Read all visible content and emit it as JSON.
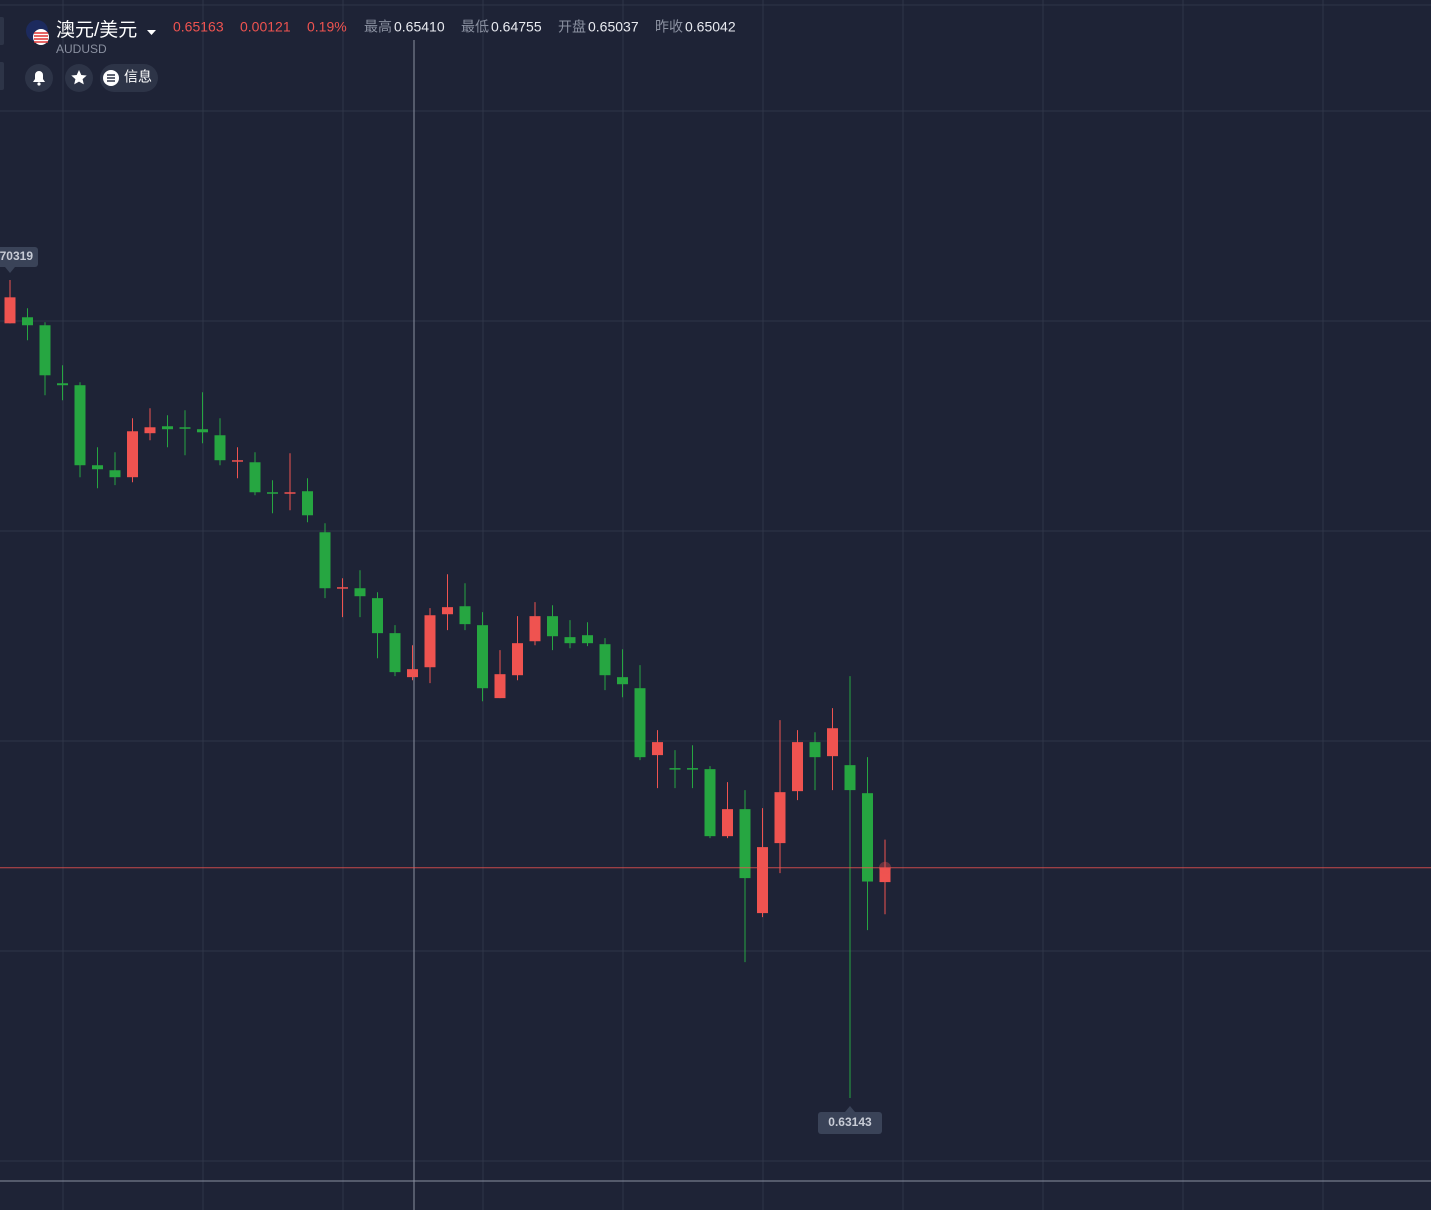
{
  "header": {
    "pair": "澳元/美元",
    "symbol": "AUDUSD",
    "price": "0.65163",
    "change": "0.00121",
    "change_pct": "0.19%",
    "stats": [
      {
        "label": "最高",
        "value": "0.65410"
      },
      {
        "label": "最低",
        "value": "0.64755"
      },
      {
        "label": "开盘",
        "value": "0.65037"
      },
      {
        "label": "昨收",
        "value": "0.65042"
      }
    ]
  },
  "buttons": {
    "info": "信息"
  },
  "chart_data": {
    "type": "candlestick",
    "open": [
      0.69939,
      0.69992,
      0.69922,
      0.69413,
      0.69396,
      0.68694,
      0.6865,
      0.68589,
      0.68975,
      0.69036,
      0.69027,
      0.6901,
      0.68957,
      0.68729,
      0.6872,
      0.68457,
      0.68448,
      0.68466,
      0.68106,
      0.67615,
      0.67615,
      0.67528,
      0.67221,
      0.66835,
      0.66922,
      0.67387,
      0.67457,
      0.67291,
      0.66651,
      0.66852,
      0.6715,
      0.6737,
      0.67186,
      0.67203,
      0.67124,
      0.66835,
      0.66738,
      0.66151,
      0.66037,
      0.66037,
      0.66028,
      0.6544,
      0.65677,
      0.64765,
      0.65379,
      0.65835,
      0.66265,
      0.66142,
      0.66063,
      0.65817,
      0.65037
    ],
    "high": [
      0.70319,
      0.70071,
      0.69948,
      0.69571,
      0.69422,
      0.68852,
      0.68808,
      0.69106,
      0.69194,
      0.69132,
      0.69176,
      0.69334,
      0.69106,
      0.68852,
      0.68808,
      0.68562,
      0.68799,
      0.6858,
      0.68185,
      0.67703,
      0.67773,
      0.6758,
      0.67291,
      0.67115,
      0.6744,
      0.67738,
      0.67659,
      0.67405,
      0.67072,
      0.6737,
      0.67493,
      0.67466,
      0.67335,
      0.67317,
      0.67177,
      0.6708,
      0.6694,
      0.6637,
      0.66195,
      0.66238,
      0.66054,
      0.65914,
      0.65844,
      0.65686,
      0.66458,
      0.6637,
      0.66352,
      0.66563,
      0.66844,
      0.66133,
      0.6541
    ],
    "low": [
      0.69939,
      0.6979,
      0.69308,
      0.69264,
      0.68589,
      0.68492,
      0.68519,
      0.68545,
      0.68913,
      0.68852,
      0.68782,
      0.68887,
      0.68694,
      0.6858,
      0.68431,
      0.68273,
      0.68299,
      0.68194,
      0.67528,
      0.67361,
      0.67361,
      0.67001,
      0.66844,
      0.66808,
      0.66782,
      0.67247,
      0.67247,
      0.66624,
      0.66651,
      0.66808,
      0.67115,
      0.67072,
      0.67089,
      0.67107,
      0.66721,
      0.66659,
      0.66107,
      0.65861,
      0.65861,
      0.65861,
      0.65423,
      0.65423,
      0.64335,
      0.6473,
      0.65116,
      0.65756,
      0.65844,
      0.65844,
      0.63143,
      0.64616,
      0.64755
    ],
    "close": [
      0.70167,
      0.69922,
      0.69483,
      0.69396,
      0.68694,
      0.68659,
      0.68589,
      0.68992,
      0.69027,
      0.6901,
      0.69018,
      0.68983,
      0.68738,
      0.68738,
      0.68457,
      0.68448,
      0.68457,
      0.68255,
      0.67615,
      0.67624,
      0.67545,
      0.67221,
      0.66879,
      0.66905,
      0.67378,
      0.67449,
      0.673,
      0.66738,
      0.66861,
      0.67133,
      0.6737,
      0.67194,
      0.67133,
      0.67133,
      0.66852,
      0.66773,
      0.66133,
      0.66265,
      0.66028,
      0.66028,
      0.6544,
      0.65677,
      0.65072,
      0.65344,
      0.65826,
      0.66265,
      0.66133,
      0.66387,
      0.65844,
      0.65042,
      0.65163
    ],
    "colors": {
      "up": "#ef5350",
      "down": "#26a641"
    },
    "high_label": "70319",
    "low_label": "0.63143"
  }
}
